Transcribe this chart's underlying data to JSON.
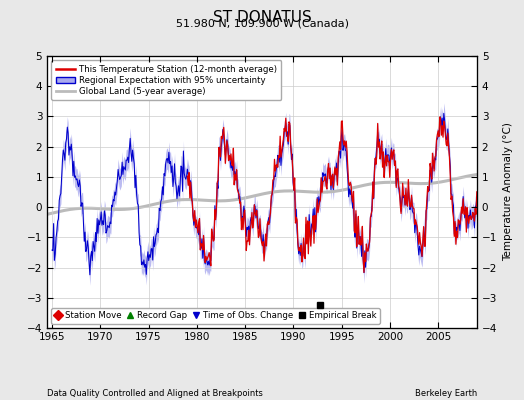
{
  "title": "ST DONATUS",
  "subtitle": "51.980 N, 109.900 W (Canada)",
  "xlabel_left": "Data Quality Controlled and Aligned at Breakpoints",
  "xlabel_right": "Berkeley Earth",
  "ylabel": "Temperature Anomaly (°C)",
  "xlim": [
    1964.5,
    2009.0
  ],
  "ylim": [
    -4,
    5
  ],
  "yticks": [
    -4,
    -3,
    -2,
    -1,
    0,
    1,
    2,
    3,
    4,
    5
  ],
  "xticks": [
    1965,
    1970,
    1975,
    1980,
    1985,
    1990,
    1995,
    2000,
    2005
  ],
  "bg_color": "#e8e8e8",
  "plot_bg_color": "#ffffff",
  "station_color": "#dd0000",
  "regional_color": "#0000cc",
  "regional_fill_color": "#aaaaee",
  "global_color": "#bbbbbb",
  "legend_items": [
    "This Temperature Station (12-month average)",
    "Regional Expectation with 95% uncertainty",
    "Global Land (5-year average)"
  ],
  "marker_legend": [
    {
      "label": "Station Move",
      "color": "#dd0000",
      "marker": "D"
    },
    {
      "label": "Record Gap",
      "color": "#008000",
      "marker": "^"
    },
    {
      "label": "Time of Obs. Change",
      "color": "#0000cc",
      "marker": "v"
    },
    {
      "label": "Empirical Break",
      "color": "#000000",
      "marker": "s"
    }
  ],
  "empirical_break_x": 1992.8,
  "empirical_break_y": -3.25
}
